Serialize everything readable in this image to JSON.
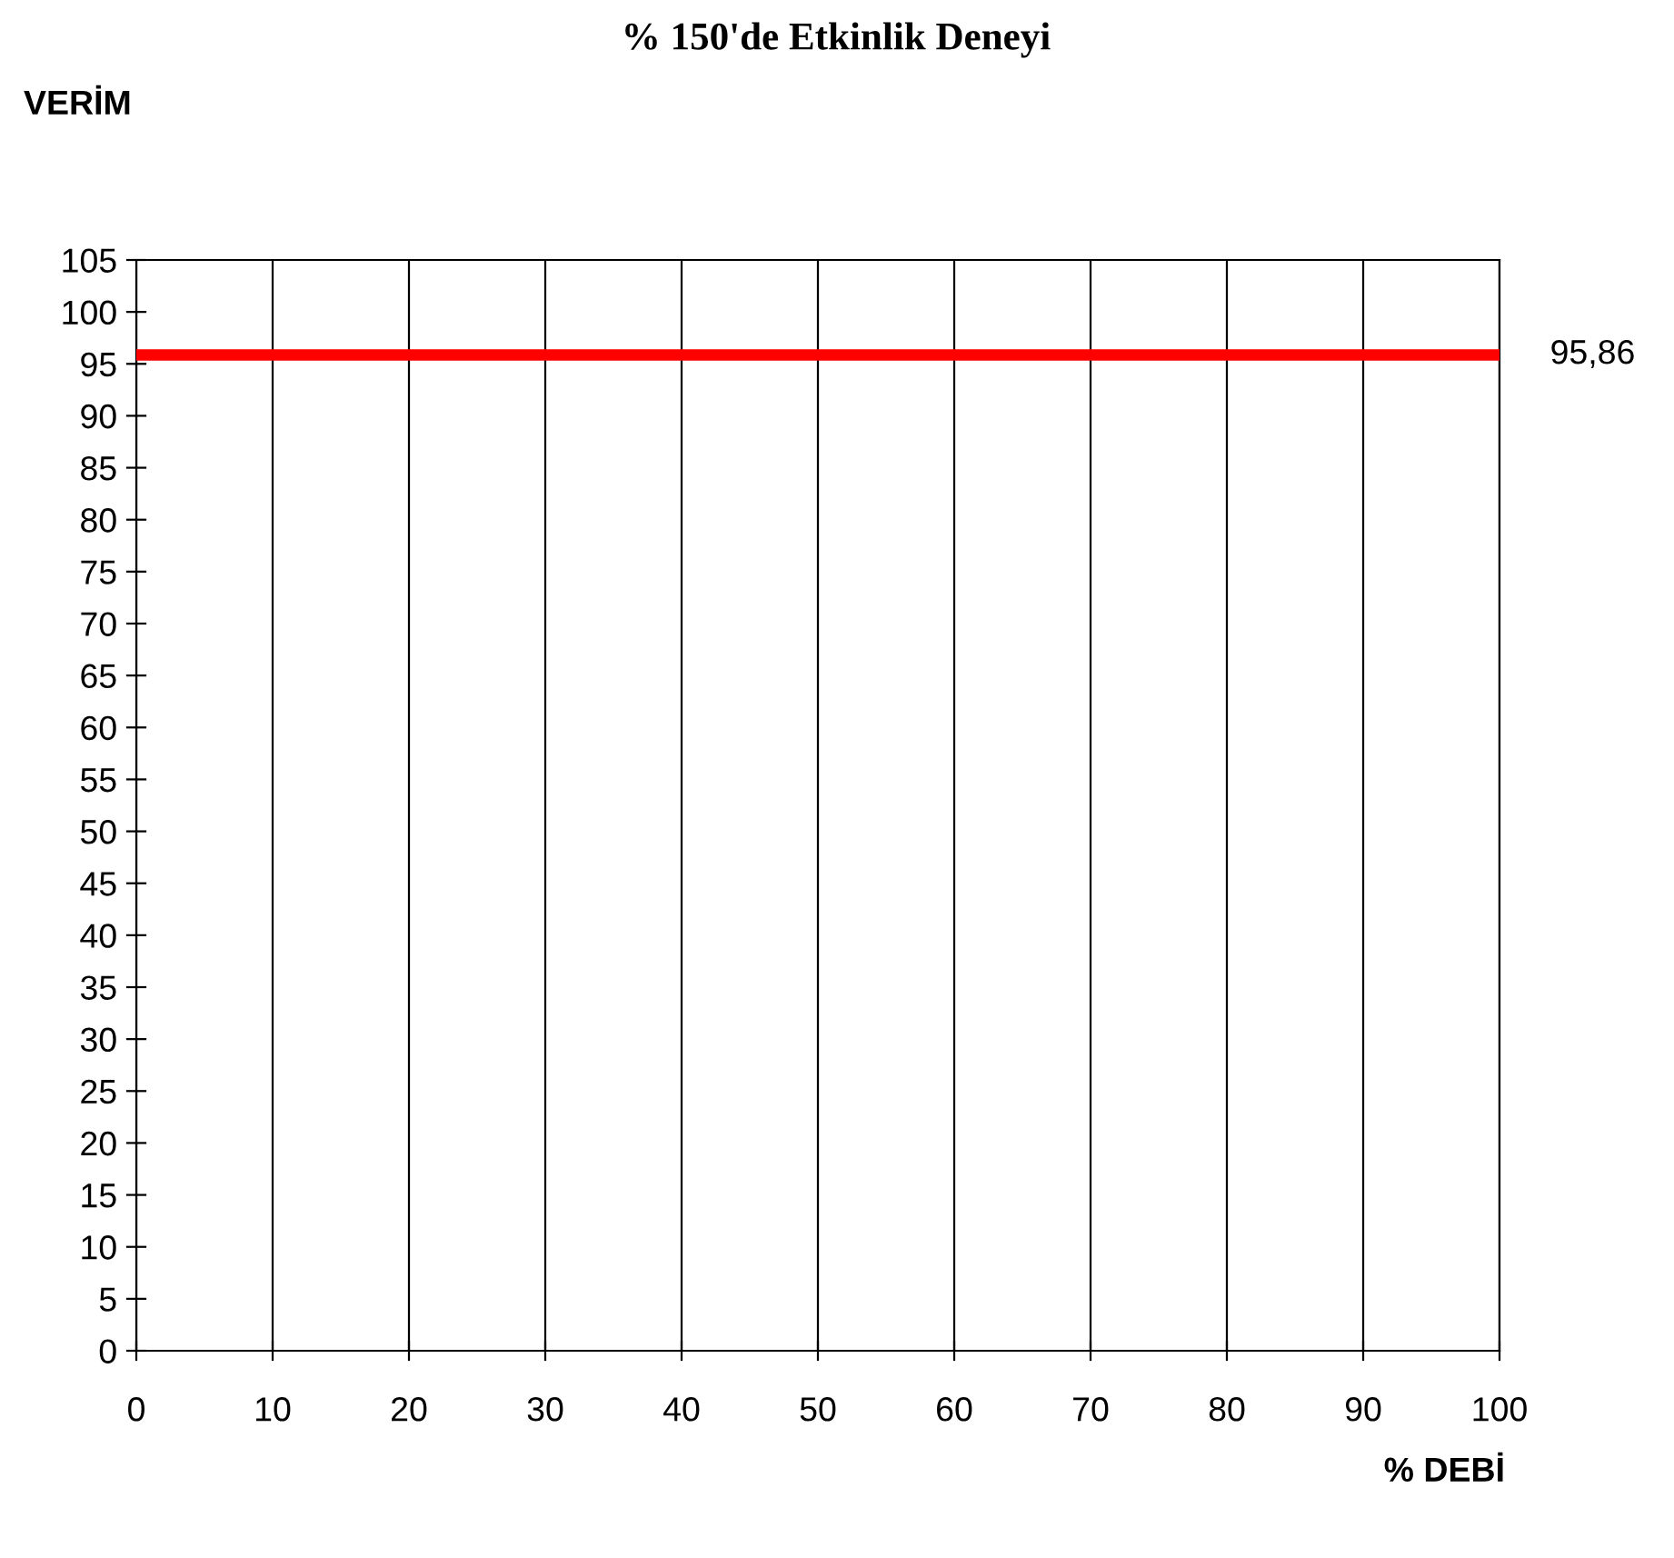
{
  "chart_data": {
    "type": "line",
    "title": "% 150'de Etkinlik Deneyi",
    "xlabel": "% DEBİ",
    "ylabel": "VERİM",
    "xlim": [
      0,
      100
    ],
    "xticks": [
      0,
      10,
      20,
      30,
      40,
      50,
      60,
      70,
      80,
      90,
      100
    ],
    "ylim": [
      0,
      105
    ],
    "yticks": [
      0,
      5,
      10,
      15,
      20,
      25,
      30,
      35,
      40,
      45,
      50,
      55,
      60,
      65,
      70,
      75,
      80,
      85,
      90,
      95,
      100,
      105
    ],
    "grid": "x",
    "legend": false,
    "ref_lines": [
      {
        "axis": "y",
        "value": 95.86,
        "label": "95,86",
        "color": "#ff0000",
        "line_style": "solid"
      }
    ]
  }
}
